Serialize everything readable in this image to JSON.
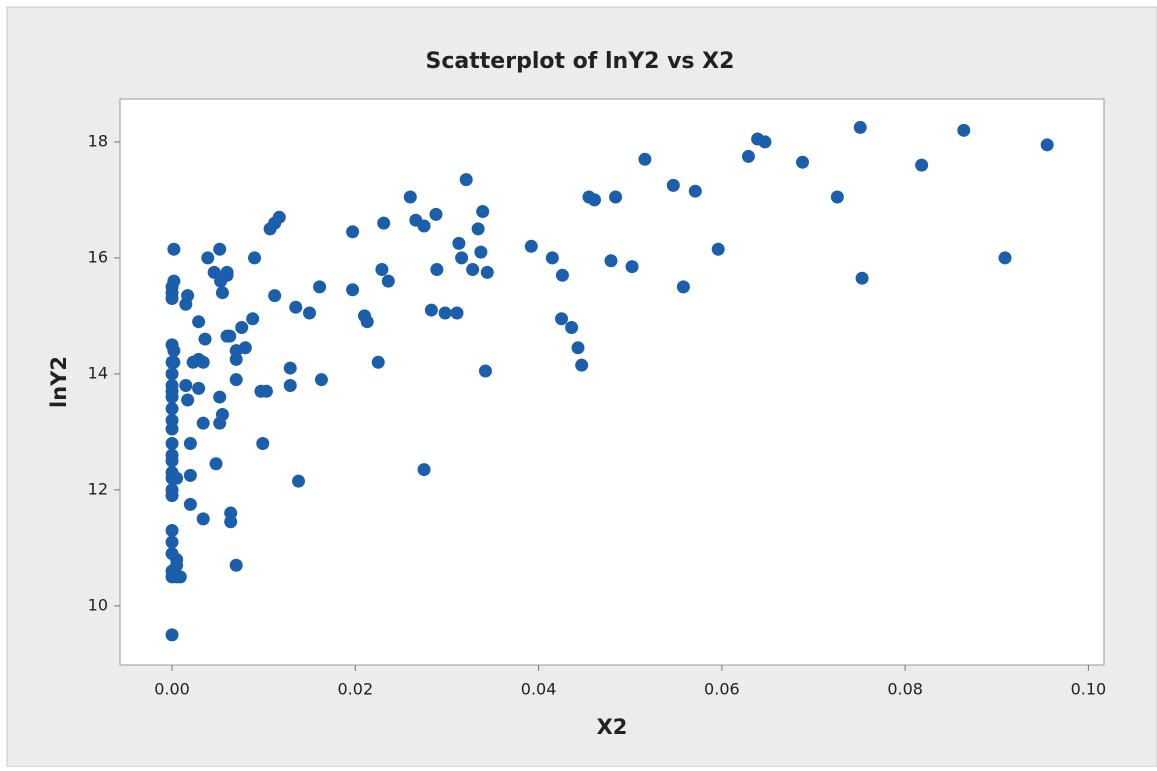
{
  "chart_data": {
    "type": "scatter",
    "title": "Scatterplot of lnY2 vs X2",
    "x_label": "X2",
    "y_label": "lnY2",
    "x": [
      0,
      0,
      0,
      0,
      0,
      0,
      0,
      0,
      0,
      0,
      0,
      0,
      0,
      0,
      0,
      0,
      0,
      0,
      0,
      0,
      0,
      0,
      0,
      0,
      0,
      0.0002,
      0.0002,
      0.0002,
      0.0002,
      0.0005,
      0.0005,
      0.0005,
      0.0005,
      0.0009,
      0.0015,
      0.0015,
      0.0017,
      0.0017,
      0.002,
      0.002,
      0.002,
      0.0023,
      0.0029,
      0.0029,
      0.0029,
      0.0034,
      0.0034,
      0.0034,
      0.0036,
      0.0039,
      0.0046,
      0.0048,
      0.0052,
      0.0052,
      0.0052,
      0.0053,
      0.0055,
      0.0055,
      0.006,
      0.006,
      0.006,
      0.0063,
      0.0064,
      0.0064,
      0.007,
      0.007,
      0.007,
      0.007,
      0.0076,
      0.008,
      0.0088,
      0.009,
      0.0097,
      0.0099,
      0.0103,
      0.0107,
      0.0112,
      0.0112,
      0.0117,
      0.0129,
      0.0129,
      0.0135,
      0.0138,
      0.015,
      0.0161,
      0.0163,
      0.0197,
      0.0197,
      0.021,
      0.0213,
      0.0225,
      0.0229,
      0.0231,
      0.0236,
      0.026,
      0.0266,
      0.0275,
      0.0275,
      0.0283,
      0.0288,
      0.0289,
      0.0298,
      0.0311,
      0.0313,
      0.0316,
      0.0321,
      0.0328,
      0.0334,
      0.0337,
      0.0339,
      0.0342,
      0.0344,
      0.0392,
      0.0415,
      0.0425,
      0.0426,
      0.0436,
      0.0443,
      0.0447,
      0.0455,
      0.0461,
      0.0479,
      0.0484,
      0.0502,
      0.0516,
      0.0547,
      0.0558,
      0.0571,
      0.0596,
      0.0629,
      0.0639,
      0.0647,
      0.0688,
      0.0726,
      0.0751,
      0.0753,
      0.0818,
      0.0864,
      0.0909,
      0.0955
    ],
    "values": [
      9.5,
      10.5,
      10.6,
      10.9,
      11.1,
      11.3,
      11.9,
      12.0,
      12.2,
      12.3,
      12.5,
      12.6,
      12.8,
      13.05,
      13.2,
      13.4,
      13.6,
      13.7,
      13.8,
      14.0,
      14.2,
      14.5,
      15.3,
      15.4,
      15.5,
      15.6,
      16.15,
      14.4,
      14.2,
      10.5,
      10.7,
      10.8,
      12.2,
      10.5,
      15.2,
      13.8,
      15.35,
      13.55,
      11.75,
      12.25,
      12.8,
      14.2,
      14.9,
      14.25,
      13.75,
      14.2,
      13.15,
      11.5,
      14.6,
      16.0,
      15.75,
      12.45,
      16.15,
      13.6,
      13.15,
      15.6,
      15.4,
      13.3,
      15.75,
      15.7,
      14.65,
      14.65,
      11.6,
      11.45,
      10.7,
      13.9,
      14.4,
      14.25,
      14.8,
      14.45,
      14.95,
      16.0,
      13.7,
      12.8,
      13.7,
      16.5,
      16.6,
      15.35,
      16.7,
      14.1,
      13.8,
      15.15,
      12.15,
      15.05,
      15.5,
      13.9,
      16.45,
      15.45,
      15.0,
      14.9,
      14.2,
      15.8,
      16.6,
      15.6,
      17.05,
      16.65,
      16.55,
      12.35,
      15.1,
      16.75,
      15.8,
      15.05,
      15.05,
      16.25,
      16.0,
      17.35,
      15.8,
      16.5,
      16.1,
      16.8,
      14.05,
      15.75,
      16.2,
      16.0,
      14.95,
      15.7,
      14.8,
      14.45,
      14.15,
      17.05,
      17.0,
      15.95,
      17.05,
      15.85,
      17.7,
      17.25,
      15.5,
      17.15,
      16.15,
      17.75,
      18.05,
      18.0,
      17.65,
      17.05,
      18.25,
      15.65,
      17.6,
      18.2,
      16.0,
      17.95
    ],
    "color": "#1b5eab",
    "xlim": [
      -0.00568,
      0.1017
    ],
    "ylim": [
      8.98,
      18.74
    ],
    "xticks": [
      {
        "value": 0,
        "label": "0.00"
      },
      {
        "value": 0.02,
        "label": "0.02"
      },
      {
        "value": 0.04,
        "label": "0.04"
      },
      {
        "value": 0.06,
        "label": "0.06"
      },
      {
        "value": 0.08,
        "label": "0.08"
      },
      {
        "value": 0.1,
        "label": "0.10"
      }
    ],
    "yticks": [
      10,
      12,
      14,
      16,
      18
    ]
  }
}
